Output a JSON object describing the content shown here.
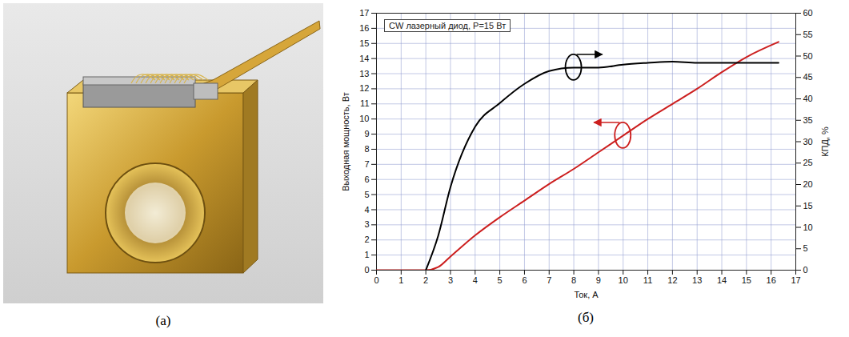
{
  "panel_labels": [
    "(а)",
    "(б)"
  ],
  "chart_data": {
    "type": "line",
    "annotation": "CW лазерный диод, P=15 Вт",
    "x_label": "Ток, А",
    "y_label": "Выходная мощность, Вт",
    "y2_label": "КПД, %",
    "x": [
      0,
      1,
      2,
      2.5,
      3,
      4,
      5,
      6,
      7,
      8,
      9,
      10,
      11,
      12,
      13,
      14,
      15,
      16.3
    ],
    "series": [
      {
        "color": "#cc1f1f",
        "values": [
          0,
          0,
          0,
          0.2,
          0.9,
          2.3,
          3.5,
          4.6,
          5.7,
          6.7,
          7.8,
          8.9,
          10.0,
          11.0,
          12.0,
          13.1,
          14.1,
          15.1
        ]
      },
      {
        "color": "#000000",
        "axis": "y2",
        "values": [
          null,
          null,
          0,
          8,
          19.4,
          33.5,
          39,
          43.5,
          46.5,
          47.3,
          47.3,
          48,
          48.4,
          48.7,
          48.4,
          48.4,
          48.4,
          48.4
        ]
      }
    ],
    "xlim": [
      0,
      17
    ],
    "xticks": [
      0,
      1,
      2,
      3,
      4,
      5,
      6,
      7,
      8,
      9,
      10,
      11,
      12,
      13,
      14,
      15,
      16,
      17
    ],
    "ylim": [
      0,
      17
    ],
    "yticks": [
      0,
      1,
      2,
      3,
      4,
      5,
      6,
      7,
      8,
      9,
      10,
      11,
      12,
      13,
      14,
      15,
      16,
      17
    ],
    "y2lim": [
      0,
      60
    ],
    "y2ticks": [
      0,
      5,
      10,
      15,
      20,
      25,
      30,
      35,
      40,
      45,
      50,
      55,
      60
    ],
    "grid": true
  }
}
